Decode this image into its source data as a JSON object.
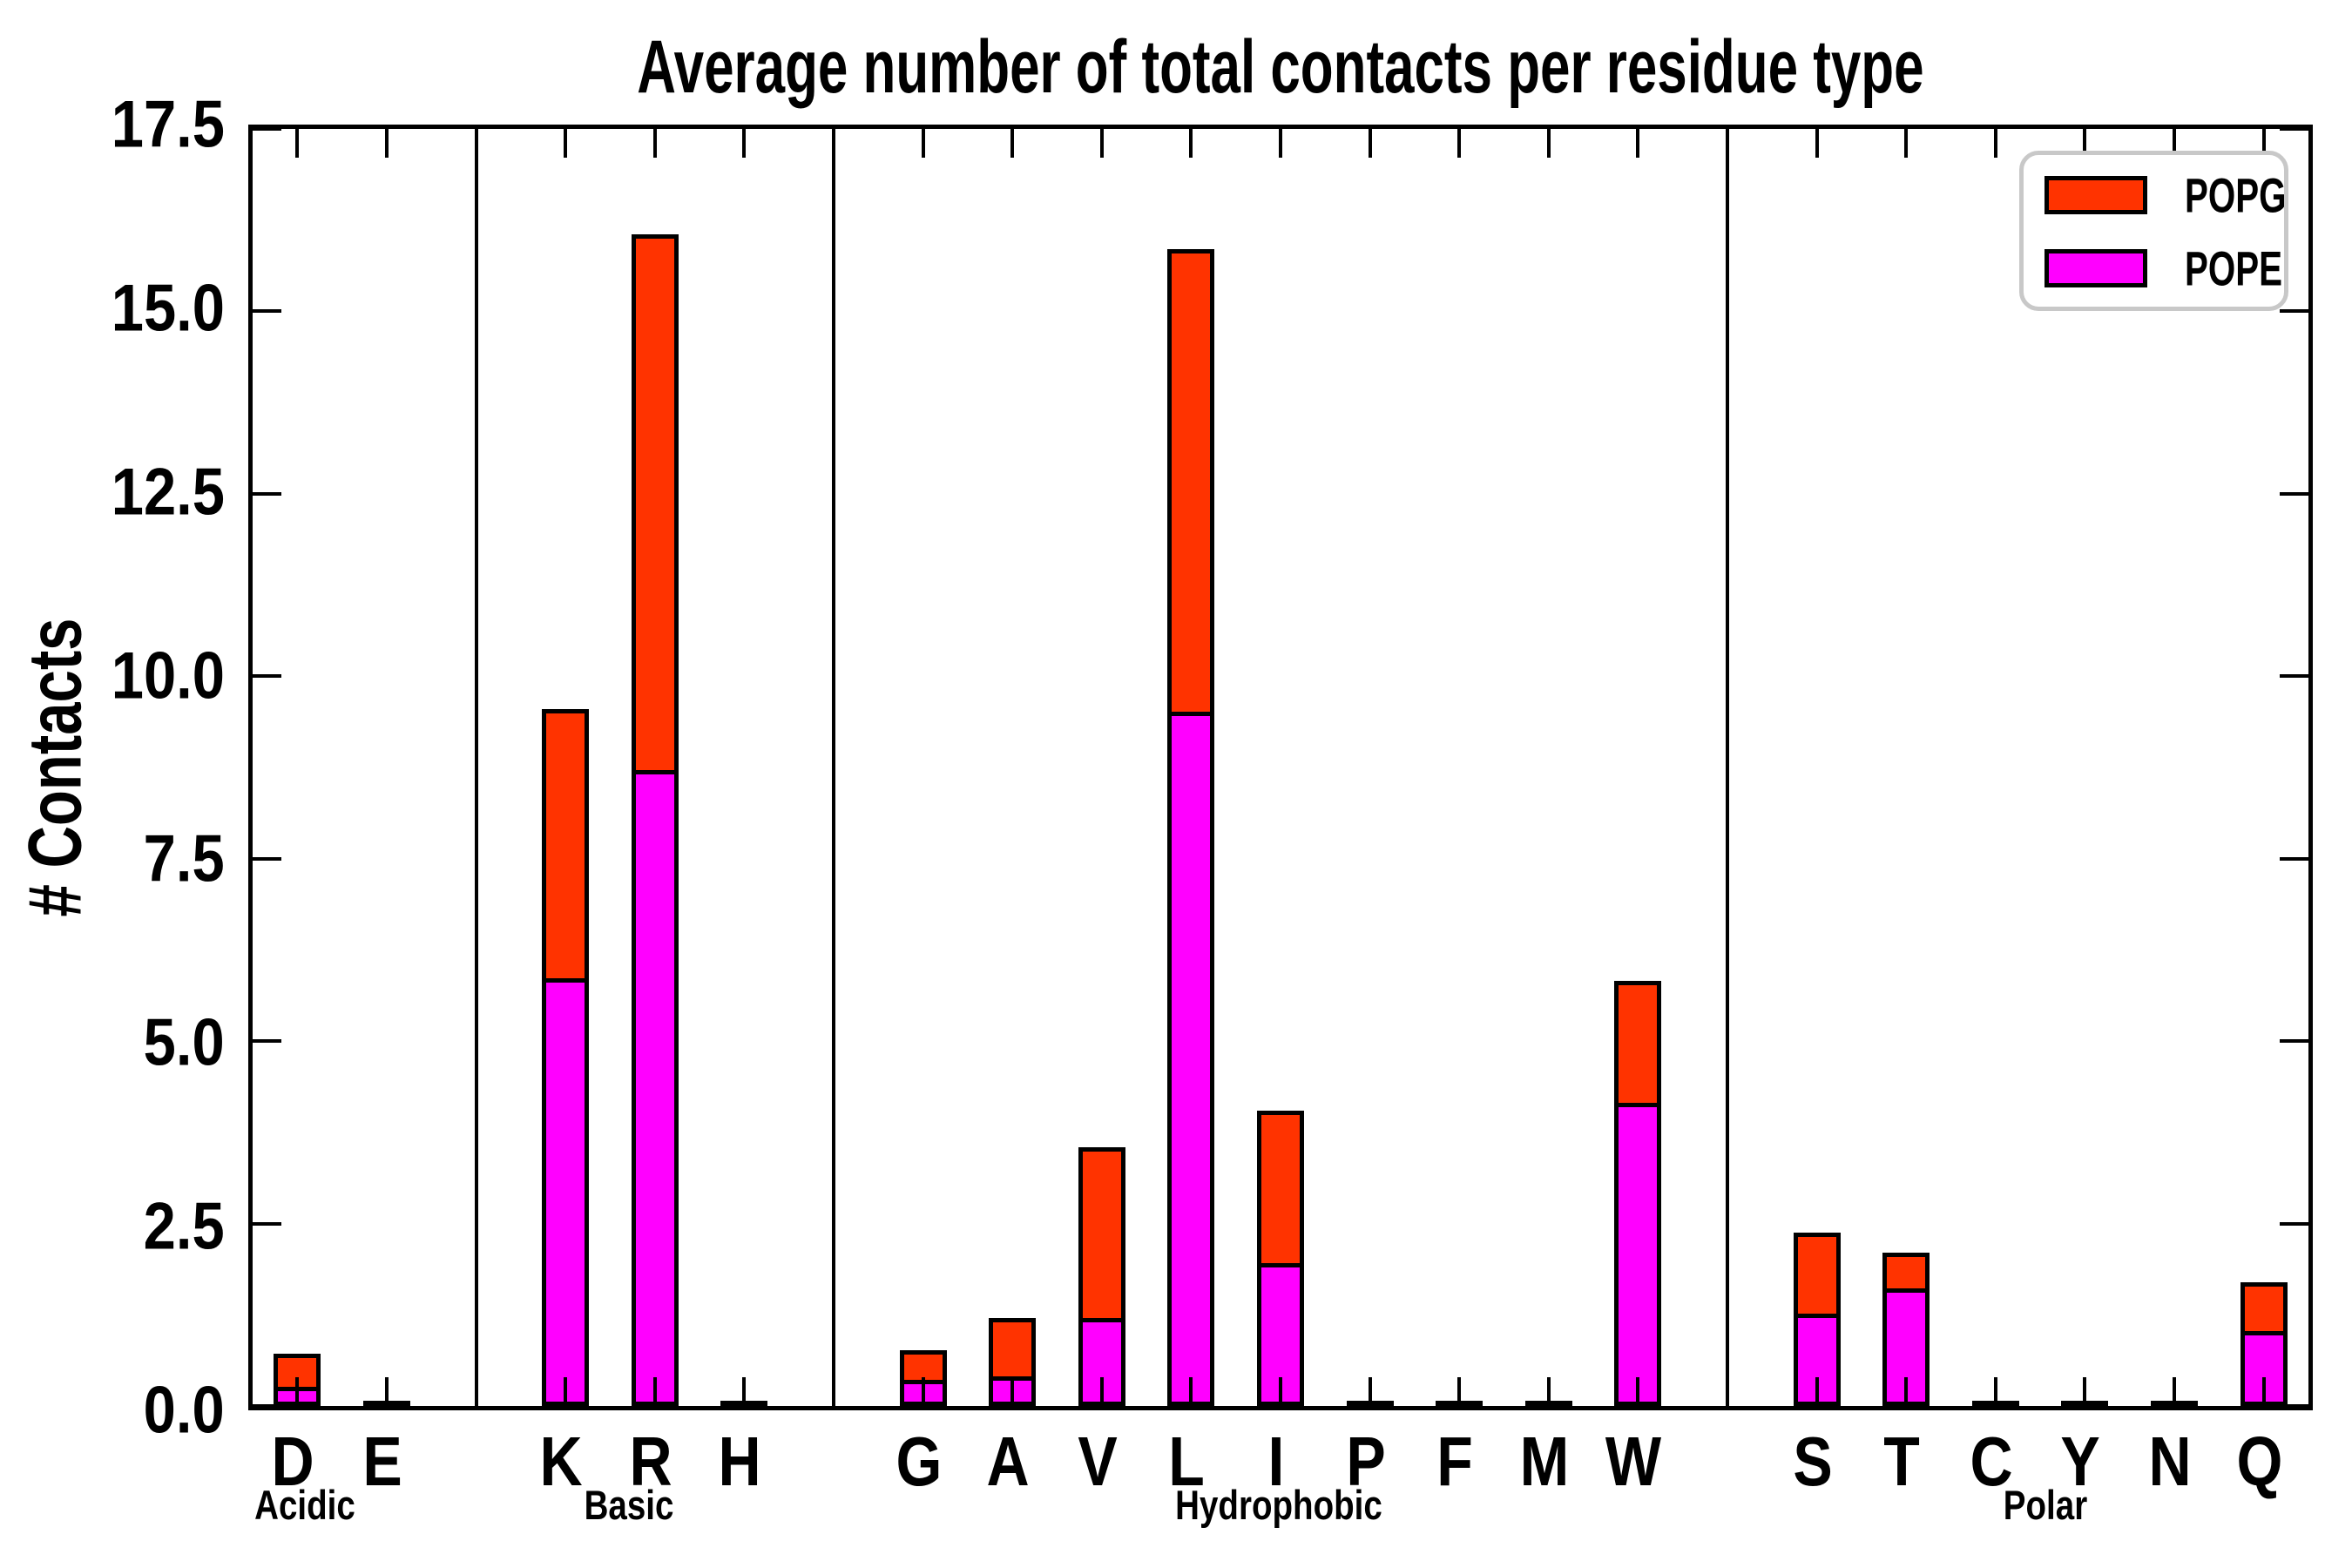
{
  "title": "Average number of total contacts per residue type",
  "ylabel": "# Contacts",
  "legend": [
    {
      "label": "POPG",
      "color": "#ff3300"
    },
    {
      "label": "POPE",
      "color": "#ff00ff"
    }
  ],
  "chart_data": {
    "type": "bar",
    "stacked": true,
    "categories": [
      "D",
      "E",
      "K",
      "R",
      "H",
      "G",
      "A",
      "V",
      "L",
      "I",
      "P",
      "F",
      "M",
      "W",
      "S",
      "T",
      "C",
      "Y",
      "N",
      "Q"
    ],
    "groups": [
      {
        "label": "Acidic",
        "residues": [
          "D",
          "E"
        ]
      },
      {
        "label": "Basic",
        "residues": [
          "K",
          "R",
          "H"
        ]
      },
      {
        "label": "Hydrophobic",
        "residues": [
          "G",
          "A",
          "V",
          "L",
          "I",
          "P",
          "F",
          "M",
          "W"
        ]
      },
      {
        "label": "Polar",
        "residues": [
          "S",
          "T",
          "C",
          "Y",
          "N",
          "Q"
        ]
      }
    ],
    "series": [
      {
        "name": "POPE",
        "color": "#ff00ff",
        "values": [
          0.2,
          0.0,
          5.8,
          8.65,
          0.0,
          0.3,
          0.35,
          1.15,
          9.45,
          1.9,
          0.0,
          0.0,
          0.0,
          4.1,
          1.2,
          1.55,
          0.0,
          0.0,
          0.0,
          0.97
        ]
      },
      {
        "name": "POPG",
        "color": "#ff3300",
        "values": [
          0.52,
          0.02,
          3.75,
          7.4,
          0.03,
          0.46,
          0.86,
          2.4,
          6.4,
          2.15,
          0.02,
          0.03,
          0.02,
          1.73,
          1.18,
          0.55,
          0.03,
          0.02,
          0.03,
          0.73
        ]
      }
    ],
    "totals": [
      0.72,
      0.02,
      9.55,
      16.05,
      0.03,
      0.76,
      1.21,
      3.55,
      15.85,
      4.05,
      0.02,
      0.03,
      0.02,
      5.83,
      2.38,
      2.1,
      0.03,
      0.02,
      0.03,
      1.7
    ],
    "ylim": [
      0,
      17.5
    ],
    "yticks": [
      {
        "label": "0.0",
        "value": 0.0
      },
      {
        "label": "2.5",
        "value": 2.5
      },
      {
        "label": "5.0",
        "value": 5.0
      },
      {
        "label": "7.5",
        "value": 7.5
      },
      {
        "label": "10.0",
        "value": 10.0
      },
      {
        "label": "12.5",
        "value": 12.5
      },
      {
        "label": "15.0",
        "value": 15.0
      },
      {
        "label": "17.5",
        "value": 17.5
      }
    ],
    "grid": false,
    "legend_position": "upper right"
  }
}
